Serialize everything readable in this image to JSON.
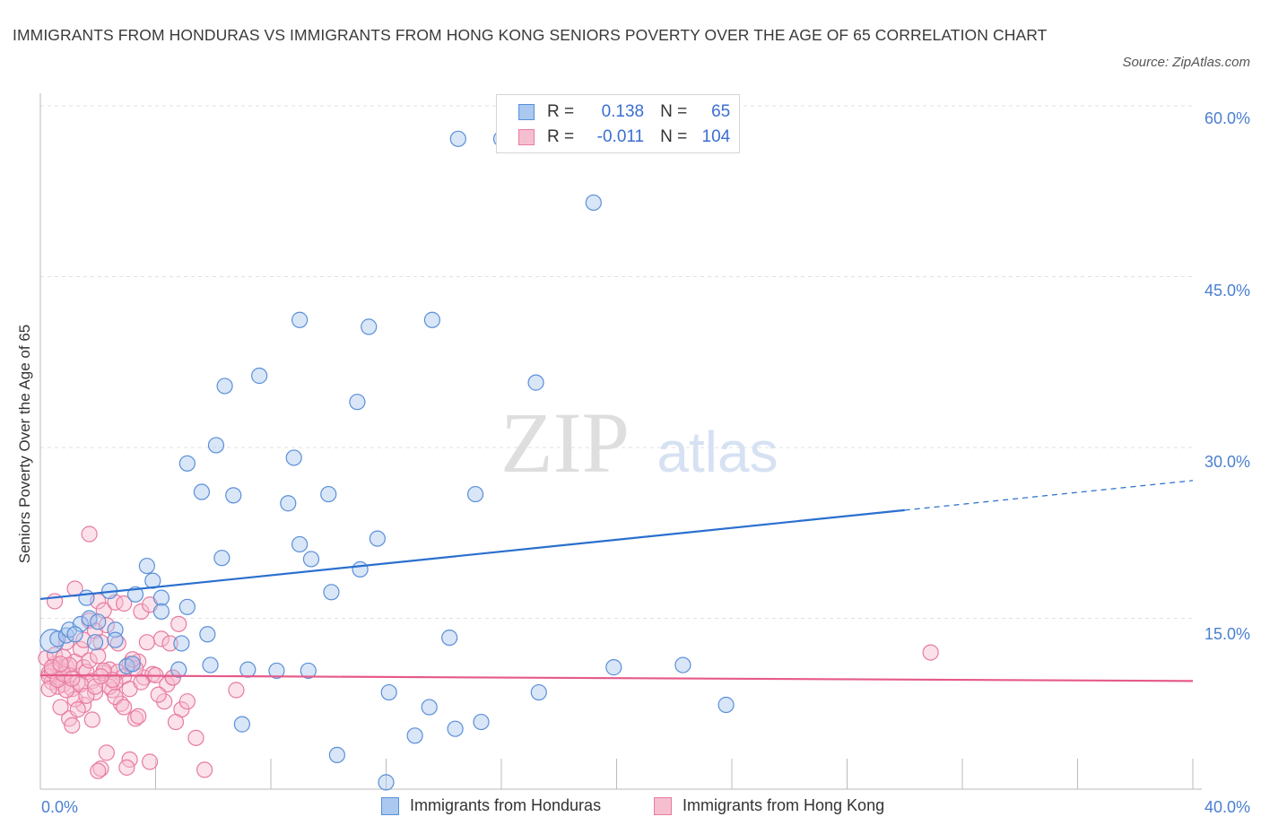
{
  "header": {
    "title": "IMMIGRANTS FROM HONDURAS VS IMMIGRANTS FROM HONG KONG SENIORS POVERTY OVER THE AGE OF 65 CORRELATION CHART",
    "source": "Source: ZipAtlas.com"
  },
  "watermark": {
    "zip": "ZIP",
    "atlas": "atlas"
  },
  "legend": {
    "rows": [
      {
        "r_label": "R =",
        "r_value": "0.138",
        "n_label": "N =",
        "n_value": "65"
      },
      {
        "r_label": "R =",
        "r_value": "-0.011",
        "n_label": "N =",
        "n_value": "104"
      }
    ]
  },
  "colors": {
    "honduras_fill": "#aac8f0",
    "honduras_stroke": "#5a8fd8",
    "honduras_line": "#2a6fcf",
    "hongkong_fill": "#f6bfd0",
    "hongkong_stroke": "#e87ba0",
    "hongkong_line": "#e65a8a",
    "grid": "#e2e2e2",
    "tick_label": "#4a7fd0"
  },
  "chart_data": {
    "type": "scatter",
    "title": "IMMIGRANTS FROM HONDURAS VS IMMIGRANTS FROM HONG KONG SENIORS POVERTY OVER THE AGE OF 65 CORRELATION CHART",
    "xlabel": "",
    "ylabel": "Seniors Poverty Over the Age of 65",
    "xlim": [
      0,
      40
    ],
    "ylim": [
      0,
      60
    ],
    "x_tick_labels": [
      "0.0%",
      "40.0%"
    ],
    "y_ticks": [
      15,
      30,
      45,
      60
    ],
    "y_tick_labels": [
      "15.0%",
      "30.0%",
      "45.0%",
      "60.0%"
    ],
    "legend_position": "bottom",
    "series": [
      {
        "name": "Immigrants from Honduras",
        "r": 0.138,
        "n": 65,
        "trend": {
          "x": [
            0,
            30,
            40
          ],
          "y": [
            16.7,
            24.5,
            27.1
          ],
          "solid_until": 30
        },
        "points": [
          [
            0.4,
            13.0
          ],
          [
            0.6,
            13.2
          ],
          [
            0.9,
            13.5
          ],
          [
            1.0,
            14.0
          ],
          [
            1.4,
            14.5
          ],
          [
            1.7,
            15.0
          ],
          [
            1.6,
            16.8
          ],
          [
            2.4,
            17.4
          ],
          [
            3.9,
            18.3
          ],
          [
            3.7,
            19.6
          ],
          [
            2.0,
            14.7
          ],
          [
            1.9,
            12.9
          ],
          [
            2.6,
            14.0
          ],
          [
            2.6,
            13.1
          ],
          [
            3.3,
            17.1
          ],
          [
            4.2,
            16.8
          ],
          [
            4.2,
            15.6
          ],
          [
            5.1,
            16.0
          ],
          [
            4.9,
            12.8
          ],
          [
            5.8,
            13.6
          ],
          [
            3.0,
            10.8
          ],
          [
            3.2,
            11.0
          ],
          [
            4.8,
            10.5
          ],
          [
            5.9,
            10.9
          ],
          [
            7.2,
            10.5
          ],
          [
            8.2,
            10.4
          ],
          [
            9.3,
            10.4
          ],
          [
            12.1,
            8.5
          ],
          [
            13.5,
            7.2
          ],
          [
            14.2,
            13.3
          ],
          [
            6.3,
            20.3
          ],
          [
            8.6,
            25.1
          ],
          [
            9.0,
            21.5
          ],
          [
            9.4,
            20.2
          ],
          [
            10.1,
            17.3
          ],
          [
            11.1,
            19.3
          ],
          [
            11.7,
            22.0
          ],
          [
            10.0,
            25.9
          ],
          [
            6.7,
            25.8
          ],
          [
            5.6,
            26.1
          ],
          [
            5.1,
            28.6
          ],
          [
            6.1,
            30.2
          ],
          [
            8.8,
            29.1
          ],
          [
            6.4,
            35.4
          ],
          [
            7.6,
            36.3
          ],
          [
            11.0,
            34.0
          ],
          [
            13.6,
            41.2
          ],
          [
            9.0,
            41.2
          ],
          [
            11.4,
            40.6
          ],
          [
            17.2,
            35.7
          ],
          [
            15.1,
            25.9
          ],
          [
            17.3,
            8.5
          ],
          [
            19.9,
            10.7
          ],
          [
            22.3,
            10.9
          ],
          [
            23.8,
            7.4
          ],
          [
            15.3,
            5.9
          ],
          [
            13.0,
            4.7
          ],
          [
            14.4,
            5.3
          ],
          [
            10.3,
            3.0
          ],
          [
            12.0,
            0.6
          ],
          [
            7.0,
            5.7
          ],
          [
            19.2,
            51.5
          ],
          [
            16.0,
            57.1
          ],
          [
            14.5,
            57.1
          ],
          [
            1.2,
            13.6
          ]
        ]
      },
      {
        "name": "Immigrants from Hong Kong",
        "r": -0.011,
        "n": 104,
        "trend": {
          "x": [
            0,
            40
          ],
          "y": [
            10.0,
            9.5
          ]
        },
        "points": [
          [
            0.3,
            10.2
          ],
          [
            0.4,
            9.4
          ],
          [
            0.5,
            11.0
          ],
          [
            0.6,
            9.8
          ],
          [
            0.7,
            10.5
          ],
          [
            0.2,
            11.5
          ],
          [
            0.3,
            9.9
          ],
          [
            0.8,
            9.2
          ],
          [
            0.9,
            10.8
          ],
          [
            0.4,
            10.4
          ],
          [
            0.6,
            9.0
          ],
          [
            0.5,
            11.8
          ],
          [
            1.0,
            10.0
          ],
          [
            1.1,
            8.8
          ],
          [
            1.3,
            9.4
          ],
          [
            1.2,
            11.2
          ],
          [
            1.4,
            12.3
          ],
          [
            1.5,
            10.7
          ],
          [
            0.8,
            11.6
          ],
          [
            0.9,
            12.9
          ],
          [
            0.5,
            16.5
          ],
          [
            1.2,
            17.6
          ],
          [
            1.7,
            14.8
          ],
          [
            1.9,
            13.9
          ],
          [
            2.0,
            16.5
          ],
          [
            2.2,
            15.7
          ],
          [
            2.6,
            16.4
          ],
          [
            2.9,
            16.3
          ],
          [
            3.5,
            15.6
          ],
          [
            3.8,
            16.2
          ],
          [
            2.1,
            12.9
          ],
          [
            2.4,
            10.5
          ],
          [
            2.7,
            10.3
          ],
          [
            2.5,
            8.7
          ],
          [
            2.9,
            9.9
          ],
          [
            3.1,
            11.0
          ],
          [
            3.4,
            11.2
          ],
          [
            3.6,
            9.8
          ],
          [
            3.3,
            10.6
          ],
          [
            3.1,
            8.8
          ],
          [
            1.6,
            10.3
          ],
          [
            1.8,
            9.5
          ],
          [
            1.9,
            8.5
          ],
          [
            2.2,
            10.2
          ],
          [
            2.6,
            9.4
          ],
          [
            3.9,
            10.1
          ],
          [
            4.2,
            13.2
          ],
          [
            4.5,
            12.8
          ],
          [
            4.8,
            14.5
          ],
          [
            4.4,
            9.2
          ],
          [
            4.6,
            9.8
          ],
          [
            4.3,
            7.7
          ],
          [
            4.9,
            7.0
          ],
          [
            5.1,
            7.7
          ],
          [
            4.7,
            5.9
          ],
          [
            5.4,
            4.5
          ],
          [
            5.7,
            1.7
          ],
          [
            1.7,
            22.4
          ],
          [
            1.5,
            7.4
          ],
          [
            1.2,
            7.9
          ],
          [
            1.8,
            6.1
          ],
          [
            2.3,
            3.2
          ],
          [
            2.1,
            1.8
          ],
          [
            2.0,
            1.6
          ],
          [
            3.1,
            2.6
          ],
          [
            3.0,
            1.9
          ],
          [
            3.8,
            2.4
          ],
          [
            3.3,
            6.2
          ],
          [
            1.0,
            6.2
          ],
          [
            1.1,
            5.6
          ],
          [
            0.7,
            7.2
          ],
          [
            0.9,
            8.7
          ],
          [
            1.3,
            7.0
          ],
          [
            2.8,
            7.5
          ],
          [
            3.5,
            9.4
          ],
          [
            2.4,
            9.0
          ],
          [
            6.8,
            8.7
          ],
          [
            30.9,
            12.0
          ],
          [
            0.3,
            8.8
          ],
          [
            0.6,
            9.6
          ],
          [
            1.0,
            10.9
          ],
          [
            1.5,
            13.1
          ],
          [
            1.7,
            11.3
          ],
          [
            2.0,
            11.7
          ],
          [
            2.3,
            14.4
          ],
          [
            2.7,
            12.8
          ],
          [
            3.2,
            11.4
          ],
          [
            3.7,
            12.9
          ],
          [
            4.0,
            10.0
          ],
          [
            4.6,
            9.8
          ],
          [
            1.4,
            9.2
          ],
          [
            1.6,
            8.2
          ],
          [
            2.2,
            10.4
          ],
          [
            2.5,
            9.6
          ],
          [
            0.8,
            10.1
          ],
          [
            1.1,
            9.7
          ],
          [
            2.6,
            8.1
          ],
          [
            2.9,
            7.2
          ],
          [
            3.4,
            6.4
          ],
          [
            4.1,
            8.3
          ],
          [
            0.4,
            10.7
          ],
          [
            0.7,
            11.0
          ],
          [
            1.9,
            9.0
          ],
          [
            2.1,
            9.9
          ]
        ]
      }
    ]
  },
  "bottom_legend": {
    "honduras": "Immigrants from Honduras",
    "hongkong": "Immigrants from Hong Kong"
  }
}
